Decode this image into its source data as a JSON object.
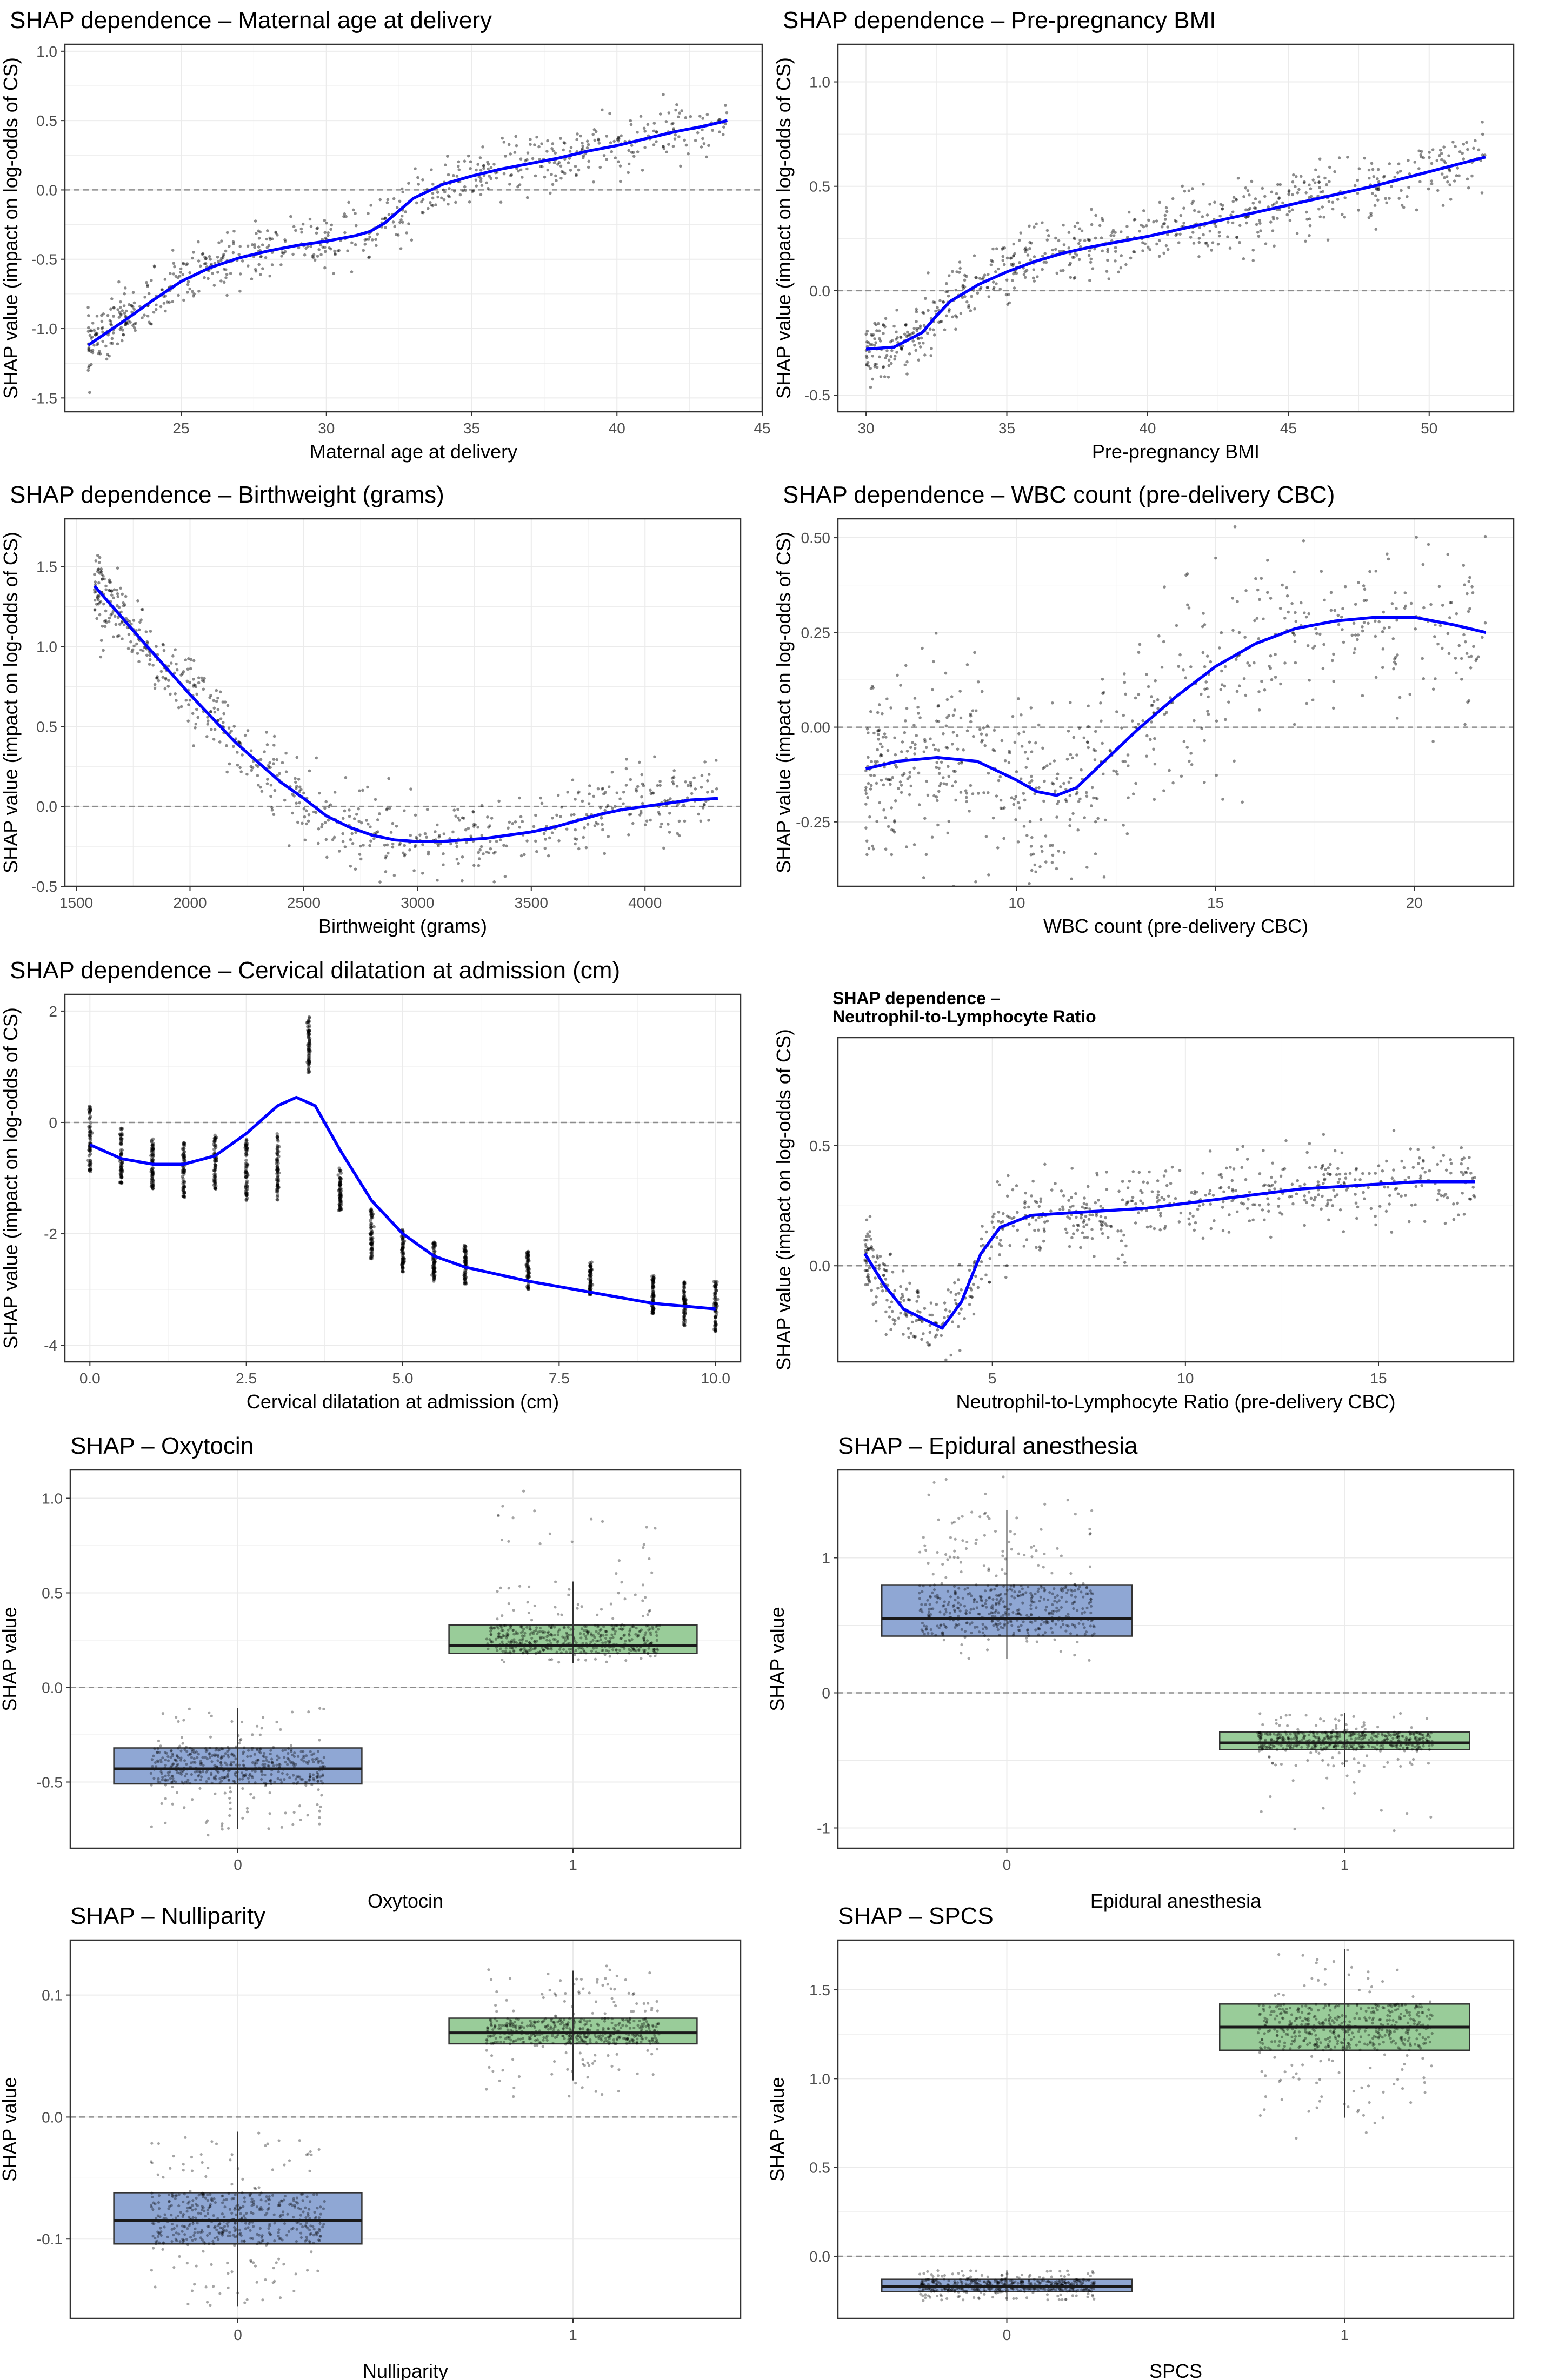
{
  "colors": {
    "smooth": "#0000ff",
    "points": "#000000",
    "grid": "#ebebeb",
    "zero_line": "#8c8c8c",
    "box_group0": "#8fa7d4",
    "box_group1": "#99cc99"
  },
  "chart_data": [
    {
      "id": "age",
      "type": "scatter",
      "title": "SHAP dependence – Maternal age at delivery",
      "xlabel": "Maternal age at delivery",
      "ylabel": "SHAP value (impact on log-odds of CS)",
      "xlim": [
        21,
        45
      ],
      "ylim": [
        -1.6,
        1.05
      ],
      "xticks": [
        25,
        30,
        35,
        40,
        45
      ],
      "yticks": [
        -1.5,
        -1.0,
        -0.5,
        0.0,
        0.5,
        1.0
      ],
      "ytick_labels": [
        "-1.5",
        "-1.0",
        "-0.5",
        "0.0",
        "0.5",
        "1.0"
      ],
      "smooth_x": [
        21.8,
        23,
        24,
        25,
        26,
        27,
        28,
        29,
        30,
        31,
        31.5,
        32,
        32.5,
        33,
        34,
        35,
        36,
        37,
        38,
        39,
        40,
        41,
        42,
        43,
        43.8
      ],
      "smooth_y": [
        -1.12,
        -0.95,
        -0.8,
        -0.66,
        -0.56,
        -0.49,
        -0.44,
        -0.4,
        -0.37,
        -0.33,
        -0.3,
        -0.24,
        -0.15,
        -0.06,
        0.04,
        0.1,
        0.15,
        0.19,
        0.23,
        0.28,
        0.32,
        0.37,
        0.42,
        0.46,
        0.5
      ],
      "spread": 0.1
    },
    {
      "id": "bmi",
      "type": "scatter",
      "title": "SHAP dependence – Pre-pregnancy BMI",
      "xlabel": "Pre-pregnancy BMI",
      "ylabel": "SHAP value (impact on log-odds of CS)",
      "xlim": [
        29,
        53
      ],
      "ylim": [
        -0.58,
        1.18
      ],
      "xticks": [
        30,
        35,
        40,
        45,
        50
      ],
      "yticks": [
        -0.5,
        0.0,
        0.5,
        1.0
      ],
      "ytick_labels": [
        "-0.5",
        "0.0",
        "0.5",
        "1.0"
      ],
      "smooth_x": [
        30,
        31,
        32,
        32.5,
        33,
        34,
        35,
        36,
        37,
        38,
        40,
        42,
        44,
        46,
        48,
        50,
        52
      ],
      "smooth_y": [
        -0.28,
        -0.27,
        -0.2,
        -0.12,
        -0.05,
        0.03,
        0.09,
        0.14,
        0.18,
        0.21,
        0.26,
        0.32,
        0.38,
        0.44,
        0.5,
        0.57,
        0.64
      ],
      "spread": 0.08
    },
    {
      "id": "bw",
      "type": "scatter",
      "title": "SHAP dependence – Birthweight (grams)",
      "xlabel": "Birthweight (grams)",
      "ylabel": "SHAP value (impact on log-odds of CS)",
      "xlim": [
        1450,
        4420
      ],
      "ylim": [
        -0.5,
        1.8
      ],
      "xticks": [
        1500,
        2000,
        2500,
        3000,
        3500,
        4000
      ],
      "yticks": [
        -0.5,
        0.0,
        0.5,
        1.0,
        1.5
      ],
      "ytick_labels": [
        "-0.5",
        "0.0",
        "0.5",
        "1.0",
        "1.5"
      ],
      "smooth_x": [
        1580,
        1800,
        2000,
        2200,
        2400,
        2500,
        2600,
        2700,
        2800,
        2900,
        3000,
        3100,
        3200,
        3300,
        3400,
        3500,
        3600,
        3700,
        3800,
        3900,
        4000,
        4100,
        4200,
        4320
      ],
      "smooth_y": [
        1.38,
        1.02,
        0.7,
        0.4,
        0.15,
        0.05,
        -0.06,
        -0.13,
        -0.18,
        -0.21,
        -0.22,
        -0.22,
        -0.21,
        -0.2,
        -0.18,
        -0.16,
        -0.13,
        -0.09,
        -0.05,
        -0.02,
        0.0,
        0.02,
        0.04,
        0.05
      ],
      "spread": 0.12
    },
    {
      "id": "wbc",
      "type": "scatter",
      "title": "SHAP dependence – WBC count (pre-delivery CBC)",
      "xlabel": "WBC count (pre-delivery CBC)",
      "ylabel": "SHAP value (impact on log-odds of CS)",
      "xlim": [
        5.5,
        22.5
      ],
      "ylim": [
        -0.42,
        0.55
      ],
      "xticks": [
        10,
        15,
        20
      ],
      "yticks": [
        -0.25,
        0.0,
        0.25,
        0.5
      ],
      "ytick_labels": [
        "-0.25",
        "0.00",
        "0.25",
        "0.50"
      ],
      "smooth_x": [
        6.2,
        7,
        8,
        9,
        10,
        10.5,
        11,
        11.5,
        12,
        13,
        14,
        15,
        16,
        17,
        18,
        19,
        20,
        21,
        21.8
      ],
      "smooth_y": [
        -0.11,
        -0.09,
        -0.08,
        -0.09,
        -0.14,
        -0.17,
        -0.18,
        -0.16,
        -0.11,
        -0.01,
        0.08,
        0.16,
        0.22,
        0.26,
        0.28,
        0.29,
        0.29,
        0.27,
        0.25
      ],
      "spread": 0.12
    },
    {
      "id": "dil",
      "type": "scatter",
      "title": "SHAP dependence – Cervical dilatation at admission (cm)",
      "xlabel": "Cervical dilatation at admission (cm)",
      "ylabel": "SHAP value (impact on log-odds of CS)",
      "xlim": [
        -0.4,
        10.4
      ],
      "ylim": [
        -4.3,
        2.3
      ],
      "xticks": [
        0.0,
        2.5,
        5.0,
        7.5,
        10.0
      ],
      "xtick_labels": [
        "0.0",
        "2.5",
        "5.0",
        "7.5",
        "10.0"
      ],
      "yticks": [
        -4,
        -2,
        0,
        2
      ],
      "ytick_labels": [
        "-4",
        "-2",
        "0",
        "2"
      ],
      "smooth_x": [
        0,
        0.5,
        1,
        1.5,
        2,
        2.5,
        3,
        3.3,
        3.6,
        4,
        4.5,
        5,
        5.5,
        6,
        7,
        8,
        9,
        10
      ],
      "smooth_y": [
        -0.4,
        -0.65,
        -0.75,
        -0.75,
        -0.6,
        -0.2,
        0.3,
        0.45,
        0.3,
        -0.5,
        -1.4,
        -2.0,
        -2.4,
        -2.6,
        -2.85,
        -3.05,
        -3.25,
        -3.35
      ],
      "columns": [
        0,
        0.5,
        1,
        1.5,
        2,
        2.5,
        3,
        3.5,
        4,
        4.5,
        5,
        5.5,
        6,
        7,
        8,
        9,
        9.5,
        10
      ],
      "column_centers": [
        -0.3,
        -0.6,
        -0.75,
        -0.85,
        -0.7,
        -0.85,
        -0.8,
        1.4,
        -1.2,
        -2.0,
        -2.3,
        -2.5,
        -2.55,
        -2.65,
        -2.8,
        -3.1,
        -3.25,
        -3.3
      ],
      "column_halfheights": [
        0.6,
        0.5,
        0.45,
        0.5,
        0.5,
        0.55,
        0.6,
        0.5,
        0.4,
        0.45,
        0.4,
        0.35,
        0.35,
        0.35,
        0.3,
        0.35,
        0.4,
        0.45
      ]
    },
    {
      "id": "nlr",
      "type": "scatter",
      "title": "SHAP dependence –\nNeutrophil-to-Lymphocyte Ratio",
      "title_lines": [
        "SHAP dependence –",
        "Neutrophil-to-Lymphocyte Ratio"
      ],
      "xlabel": "Neutrophil-to-Lymphocyte Ratio (pre-delivery CBC)",
      "ylabel": "SHAP value (impact on log-odds of CS)",
      "xlim": [
        1,
        18.5
      ],
      "ylim": [
        -0.4,
        0.95
      ],
      "xticks": [
        5,
        10,
        15
      ],
      "yticks": [
        0.0,
        0.5
      ],
      "ytick_labels": [
        "0.0",
        "0.5"
      ],
      "smooth_x": [
        1.7,
        2.2,
        2.7,
        3.2,
        3.7,
        4.2,
        4.7,
        5.2,
        6,
        7,
        8,
        9,
        10,
        11,
        12,
        13,
        14,
        15,
        16,
        17,
        17.5
      ],
      "smooth_y": [
        0.05,
        -0.08,
        -0.18,
        -0.22,
        -0.26,
        -0.15,
        0.05,
        0.16,
        0.21,
        0.22,
        0.23,
        0.24,
        0.26,
        0.28,
        0.3,
        0.32,
        0.33,
        0.34,
        0.35,
        0.35,
        0.35
      ],
      "spread": 0.08
    },
    {
      "id": "oxy",
      "type": "box",
      "title": "SHAP – Oxytocin",
      "xlabel": "Oxytocin",
      "ylabel": "SHAP value",
      "categories": [
        "0",
        "1"
      ],
      "ylim": [
        -0.85,
        1.15
      ],
      "yticks": [
        -0.5,
        0.0,
        0.5,
        1.0
      ],
      "ytick_labels": [
        "-0.5",
        "0.0",
        "0.5",
        "1.0"
      ],
      "boxes": [
        {
          "q1": -0.51,
          "median": -0.43,
          "q3": -0.32,
          "min": -0.75,
          "max": -0.11,
          "jitter_low": -0.82,
          "jitter_high": -0.11
        },
        {
          "q1": 0.18,
          "median": 0.22,
          "q3": 0.33,
          "min": 0.13,
          "max": 0.56,
          "jitter_low": 0.13,
          "jitter_high": 1.05
        }
      ]
    },
    {
      "id": "epi",
      "type": "box",
      "title": "SHAP – Epidural anesthesia",
      "xlabel": "Epidural anesthesia",
      "ylabel": "SHAP value",
      "categories": [
        "0",
        "1"
      ],
      "ylim": [
        -1.15,
        1.65
      ],
      "yticks": [
        -1,
        0,
        1
      ],
      "ytick_labels": [
        "-1",
        "0",
        "1"
      ],
      "boxes": [
        {
          "q1": 0.42,
          "median": 0.55,
          "q3": 0.8,
          "min": 0.25,
          "max": 1.35,
          "jitter_low": 0.2,
          "jitter_high": 1.6
        },
        {
          "q1": -0.42,
          "median": -0.37,
          "q3": -0.29,
          "min": -0.55,
          "max": -0.15,
          "jitter_low": -1.05,
          "jitter_high": -0.15
        }
      ]
    },
    {
      "id": "nul",
      "type": "box",
      "title": "SHAP – Nulliparity",
      "xlabel": "Nulliparity",
      "ylabel": "SHAP value",
      "categories": [
        "0",
        "1"
      ],
      "ylim": [
        -0.165,
        0.145
      ],
      "yticks": [
        -0.1,
        0.0,
        0.1
      ],
      "ytick_labels": [
        "-0.1",
        "0.0",
        "0.1"
      ],
      "boxes": [
        {
          "q1": -0.104,
          "median": -0.085,
          "q3": -0.062,
          "min": -0.155,
          "max": -0.012,
          "jitter_low": -0.155,
          "jitter_high": -0.012
        },
        {
          "q1": 0.06,
          "median": 0.069,
          "q3": 0.081,
          "min": 0.03,
          "max": 0.12,
          "jitter_low": 0.015,
          "jitter_high": 0.128
        }
      ]
    },
    {
      "id": "spcs",
      "type": "box",
      "title": "SHAP – SPCS",
      "xlabel": "SPCS",
      "ylabel": "SHAP value",
      "categories": [
        "0",
        "1"
      ],
      "ylim": [
        -0.35,
        1.78
      ],
      "yticks": [
        0.0,
        0.5,
        1.0,
        1.5
      ],
      "ytick_labels": [
        "0.0",
        "0.5",
        "1.0",
        "1.5"
      ],
      "boxes": [
        {
          "q1": -0.2,
          "median": -0.17,
          "q3": -0.13,
          "min": -0.25,
          "max": -0.08,
          "jitter_low": -0.25,
          "jitter_high": -0.08
        },
        {
          "q1": 1.16,
          "median": 1.29,
          "q3": 1.42,
          "min": 0.78,
          "max": 1.73,
          "jitter_low": 0.62,
          "jitter_high": 1.73
        }
      ]
    }
  ]
}
